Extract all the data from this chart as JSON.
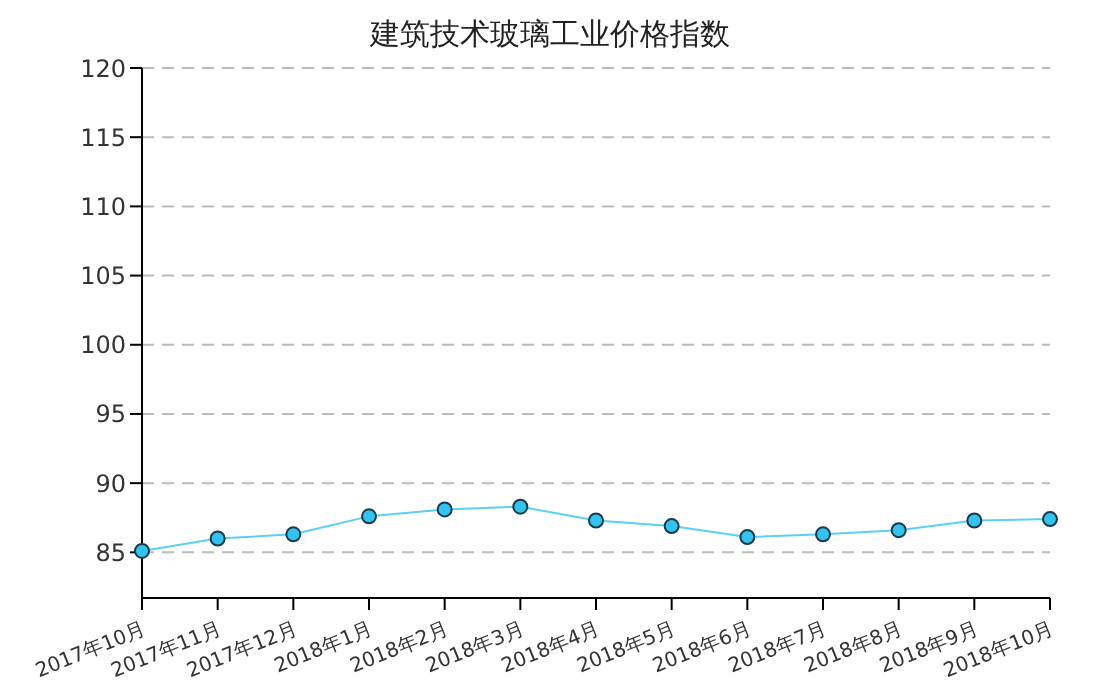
{
  "chart_data": {
    "type": "line",
    "title": "建筑技术玻璃工业价格指数",
    "categories": [
      "2017年10月",
      "2017年11月",
      "2017年12月",
      "2018年1月",
      "2018年2月",
      "2018年3月",
      "2018年4月",
      "2018年5月",
      "2018年6月",
      "2018年7月",
      "2018年8月",
      "2018年9月",
      "2018年10月"
    ],
    "series": [
      {
        "color": "#5bd0f5",
        "values": [
          85.1,
          86.0,
          86.3,
          87.6,
          88.1,
          88.3,
          87.3,
          86.9,
          86.1,
          86.3,
          86.6,
          87.3,
          87.4
        ]
      }
    ],
    "ylim": [
      81.7,
      120
    ],
    "yticks": [
      85,
      90,
      95,
      100,
      105,
      110,
      115,
      120
    ],
    "grid": "y",
    "marker": "circle",
    "legend": false
  }
}
